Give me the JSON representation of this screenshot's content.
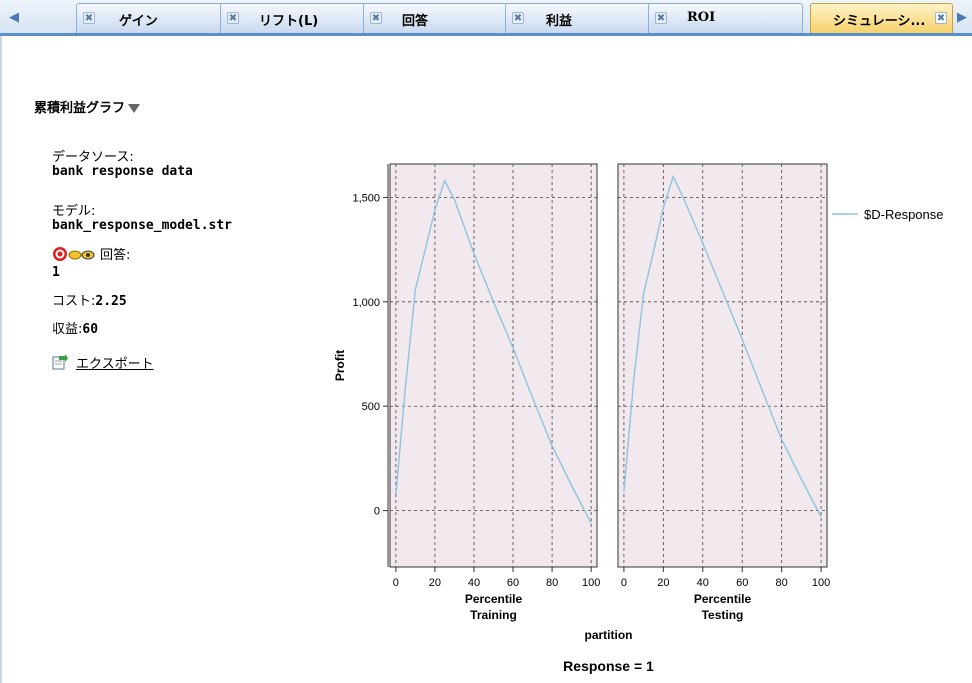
{
  "tabs": [
    {
      "label": "ゲイン",
      "active": false
    },
    {
      "label": "リフト(L)",
      "active": false
    },
    {
      "label": "回答",
      "active": false
    },
    {
      "label": "利益",
      "active": false
    },
    {
      "label": "ROI",
      "active": false
    },
    {
      "label": "シミュレーシ...",
      "active": true
    }
  ],
  "panel": {
    "title": "累積利益グラフ",
    "datasource_label": "データソース:",
    "datasource_value": "bank response data",
    "model_label": "モデル:",
    "model_value": "bank_response_model.str",
    "response_label": "回答:",
    "response_value": "1",
    "cost_label": "コスト:",
    "cost_value": "2.25",
    "revenue_label": "収益:",
    "revenue_value": "60",
    "export_label": "エクスポート"
  },
  "colors": {
    "line": "#8fc3de",
    "plot_bg": "#f1e9ee",
    "tab_active": "#f6d16a",
    "accent": "#5a8fcb"
  },
  "chart_data": {
    "type": "line",
    "ylabel": "Profit",
    "yticks": [
      0,
      500,
      1000,
      1500
    ],
    "ytick_labels": [
      "0",
      "500",
      "1,000",
      "1,500"
    ],
    "ylim": [
      -270,
      1660
    ],
    "xlim": [
      -3,
      103
    ],
    "xticks": [
      0,
      20,
      40,
      60,
      80,
      100
    ],
    "xlabel": "Percentile",
    "facet_label": "partition",
    "footer": "Response = 1",
    "legend": "$D-Response",
    "legend_position": "right",
    "grid": true,
    "panels": [
      {
        "name": "Training",
        "x": [
          0,
          5,
          10,
          15,
          20,
          25,
          30,
          40,
          50,
          60,
          70,
          80,
          90,
          100
        ],
        "y": [
          80,
          600,
          1060,
          1250,
          1440,
          1580,
          1490,
          1230,
          1000,
          780,
          540,
          310,
          120,
          -60
        ]
      },
      {
        "name": "Testing",
        "x": [
          0,
          5,
          10,
          15,
          20,
          25,
          30,
          40,
          50,
          60,
          70,
          80,
          90,
          100
        ],
        "y": [
          90,
          630,
          1040,
          1240,
          1450,
          1600,
          1500,
          1280,
          1050,
          820,
          580,
          340,
          150,
          -30
        ]
      }
    ]
  }
}
